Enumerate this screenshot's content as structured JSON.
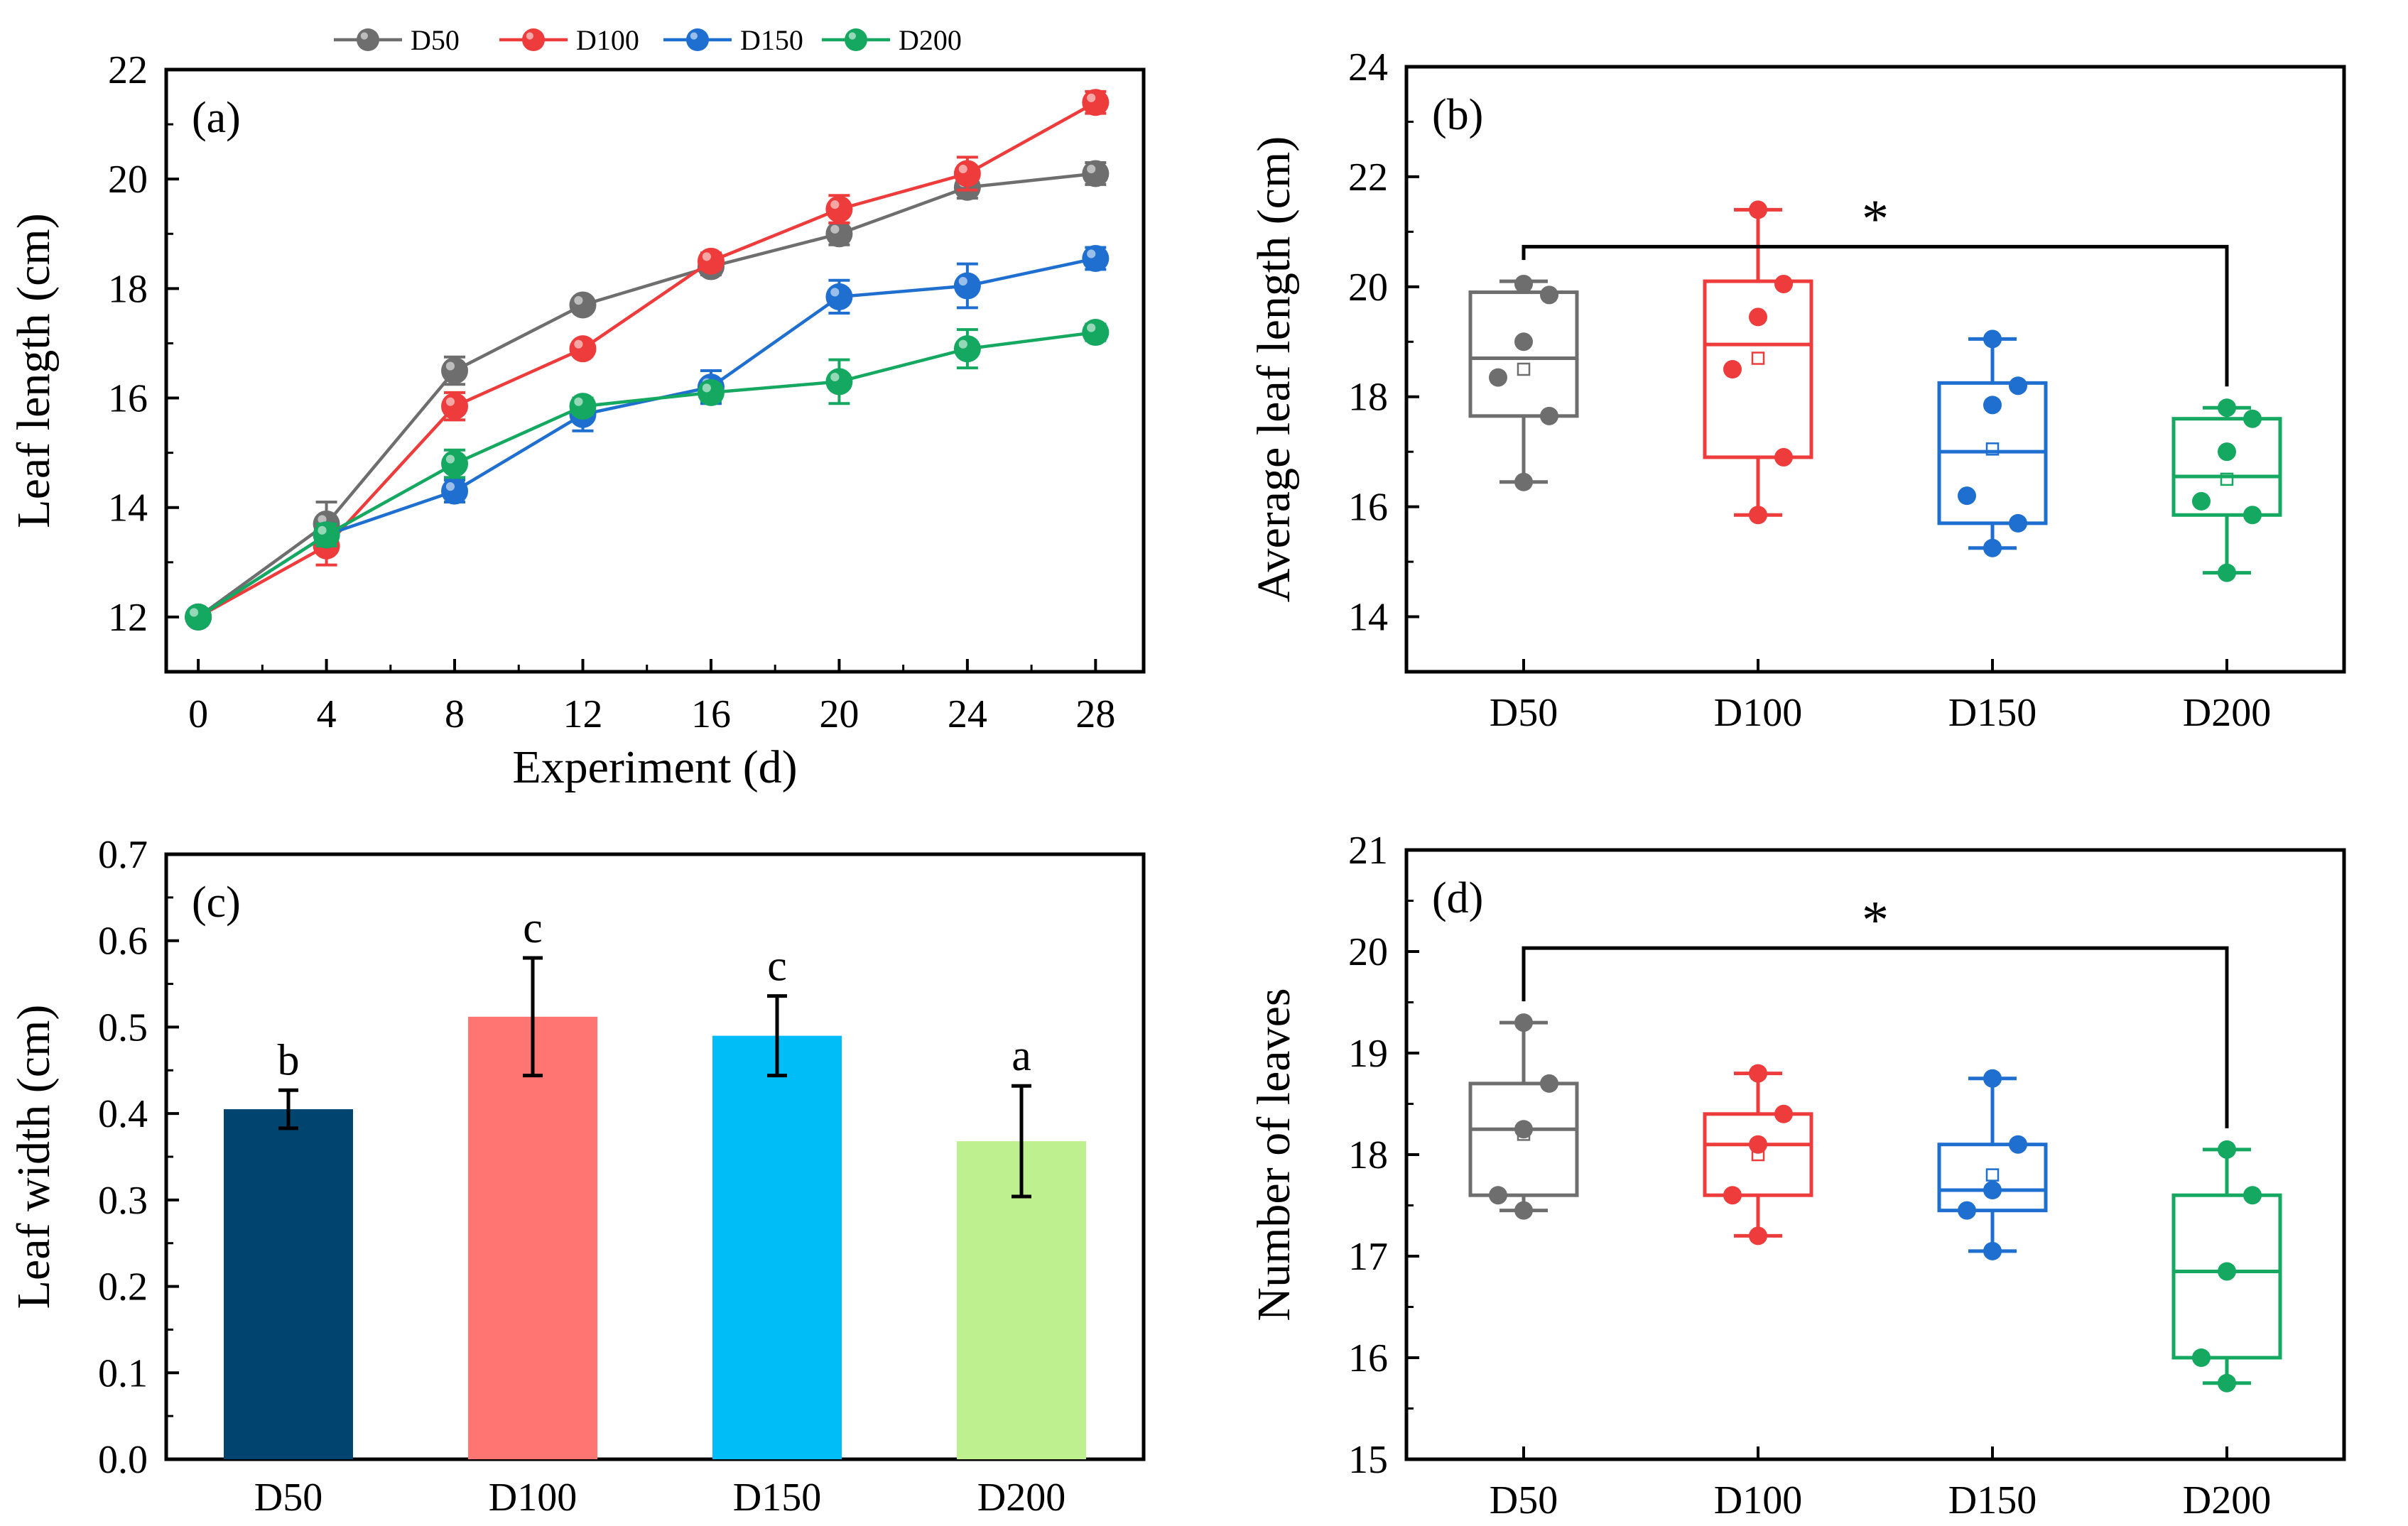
{
  "chart_data": [
    {
      "panel": "(a)",
      "type": "line",
      "xlabel": "Experiment (d)",
      "ylabel": "Leaf length (cm)",
      "x": [
        0,
        4,
        8,
        12,
        16,
        20,
        24,
        28
      ],
      "xticks": [
        "0",
        "4",
        "8",
        "12",
        "16",
        "20",
        "24",
        "28"
      ],
      "xlim": [
        -1,
        29.5
      ],
      "ylim": [
        11,
        22
      ],
      "yticks": [
        "12",
        "14",
        "16",
        "18",
        "20",
        "22"
      ],
      "series": [
        {
          "name": "D50",
          "color": "#6e6e6e",
          "values": [
            12.0,
            13.7,
            16.5,
            17.7,
            18.4,
            19.0,
            19.85,
            20.1
          ],
          "errors": [
            0.1,
            0.4,
            0.25,
            0.12,
            0.15,
            0.2,
            0.2,
            0.2
          ]
        },
        {
          "name": "D100",
          "color": "#ee3b3b",
          "values": [
            12.0,
            13.3,
            15.85,
            16.9,
            18.5,
            19.45,
            20.1,
            21.4
          ],
          "errors": [
            0.1,
            0.35,
            0.25,
            0.12,
            0.15,
            0.25,
            0.3,
            0.2
          ]
        },
        {
          "name": "D150",
          "color": "#1e6fd0",
          "values": [
            12.0,
            13.5,
            14.3,
            15.7,
            16.2,
            17.85,
            18.05,
            18.55
          ],
          "errors": [
            0.1,
            0.2,
            0.2,
            0.3,
            0.3,
            0.3,
            0.4,
            0.2
          ]
        },
        {
          "name": "D200",
          "color": "#14a860",
          "values": [
            12.0,
            13.5,
            14.8,
            15.85,
            16.1,
            16.3,
            16.9,
            17.2
          ],
          "errors": [
            0.1,
            0.2,
            0.25,
            0.15,
            0.15,
            0.4,
            0.35,
            0.15
          ]
        }
      ],
      "legend": "top"
    },
    {
      "panel": "(b)",
      "type": "box",
      "xlabel": "",
      "ylabel": "Average leaf length (cm)",
      "categories": [
        "D50",
        "D100",
        "D150",
        "D200"
      ],
      "colors": [
        "#6e6e6e",
        "#ee3b3b",
        "#1e6fd0",
        "#14a860"
      ],
      "ylim": [
        13,
        24
      ],
      "yticks": [
        "14",
        "16",
        "18",
        "20",
        "22",
        "24"
      ],
      "boxes": [
        {
          "min": 16.45,
          "q1": 17.65,
          "median": 18.7,
          "q3": 19.9,
          "max": 20.1,
          "mean": 18.5,
          "points": [
            20.05,
            19.85,
            19.0,
            18.35,
            17.65,
            16.45
          ]
        },
        {
          "min": 15.85,
          "q1": 16.9,
          "median": 18.95,
          "q3": 20.1,
          "max": 21.4,
          "mean": 18.7,
          "points": [
            21.4,
            20.05,
            19.45,
            18.5,
            16.9,
            15.85
          ]
        },
        {
          "min": 15.25,
          "q1": 15.7,
          "median": 17.0,
          "q3": 18.25,
          "max": 19.05,
          "mean": 17.05,
          "points": [
            19.05,
            18.2,
            17.85,
            16.2,
            15.7,
            15.25
          ]
        },
        {
          "min": 14.8,
          "q1": 15.85,
          "median": 16.55,
          "q3": 17.6,
          "max": 17.8,
          "mean": 16.5,
          "points": [
            17.8,
            17.6,
            17.0,
            16.1,
            15.85,
            14.8
          ]
        }
      ],
      "significance": {
        "from": "D50",
        "to": "D200",
        "label": "*"
      }
    },
    {
      "panel": "(c)",
      "type": "bar",
      "xlabel": "",
      "ylabel": "Leaf width (cm)",
      "categories": [
        "D50",
        "D100",
        "D150",
        "D200"
      ],
      "values": [
        0.405,
        0.512,
        0.49,
        0.368
      ],
      "errors": [
        0.022,
        0.068,
        0.046,
        0.064
      ],
      "colors": [
        "#00446f",
        "#ff7572",
        "#00bcf7",
        "#bff08f"
      ],
      "letters": [
        "b",
        "c",
        "c",
        "a"
      ],
      "ylim": [
        0,
        0.7
      ],
      "yticks": [
        "0.0",
        "0.1",
        "0.2",
        "0.3",
        "0.4",
        "0.5",
        "0.6",
        "0.7"
      ]
    },
    {
      "panel": "(d)",
      "type": "box",
      "xlabel": "",
      "ylabel": "Number of leaves",
      "categories": [
        "D50",
        "D100",
        "D150",
        "D200"
      ],
      "colors": [
        "#6e6e6e",
        "#ee3b3b",
        "#1e6fd0",
        "#14a860"
      ],
      "ylim": [
        15,
        21
      ],
      "yticks": [
        "15",
        "16",
        "17",
        "18",
        "19",
        "20",
        "21"
      ],
      "boxes": [
        {
          "min": 17.45,
          "q1": 17.6,
          "median": 18.25,
          "q3": 18.7,
          "max": 19.3,
          "mean": 18.2,
          "points": [
            19.3,
            18.7,
            18.25,
            17.6,
            17.45
          ]
        },
        {
          "min": 17.2,
          "q1": 17.6,
          "median": 18.1,
          "q3": 18.4,
          "max": 18.8,
          "mean": 18.0,
          "points": [
            18.8,
            18.4,
            18.1,
            17.6,
            17.2
          ]
        },
        {
          "min": 17.05,
          "q1": 17.45,
          "median": 17.65,
          "q3": 18.1,
          "max": 18.75,
          "mean": 17.8,
          "points": [
            18.75,
            18.1,
            17.65,
            17.45,
            17.05
          ]
        },
        {
          "min": 15.75,
          "q1": 16.0,
          "median": 16.85,
          "q3": 17.6,
          "max": 18.05,
          "mean": 16.85,
          "points": [
            18.05,
            17.6,
            16.85,
            16.0,
            15.75
          ]
        }
      ],
      "significance": {
        "from": "D50",
        "to": "D200",
        "label": "*"
      }
    }
  ]
}
